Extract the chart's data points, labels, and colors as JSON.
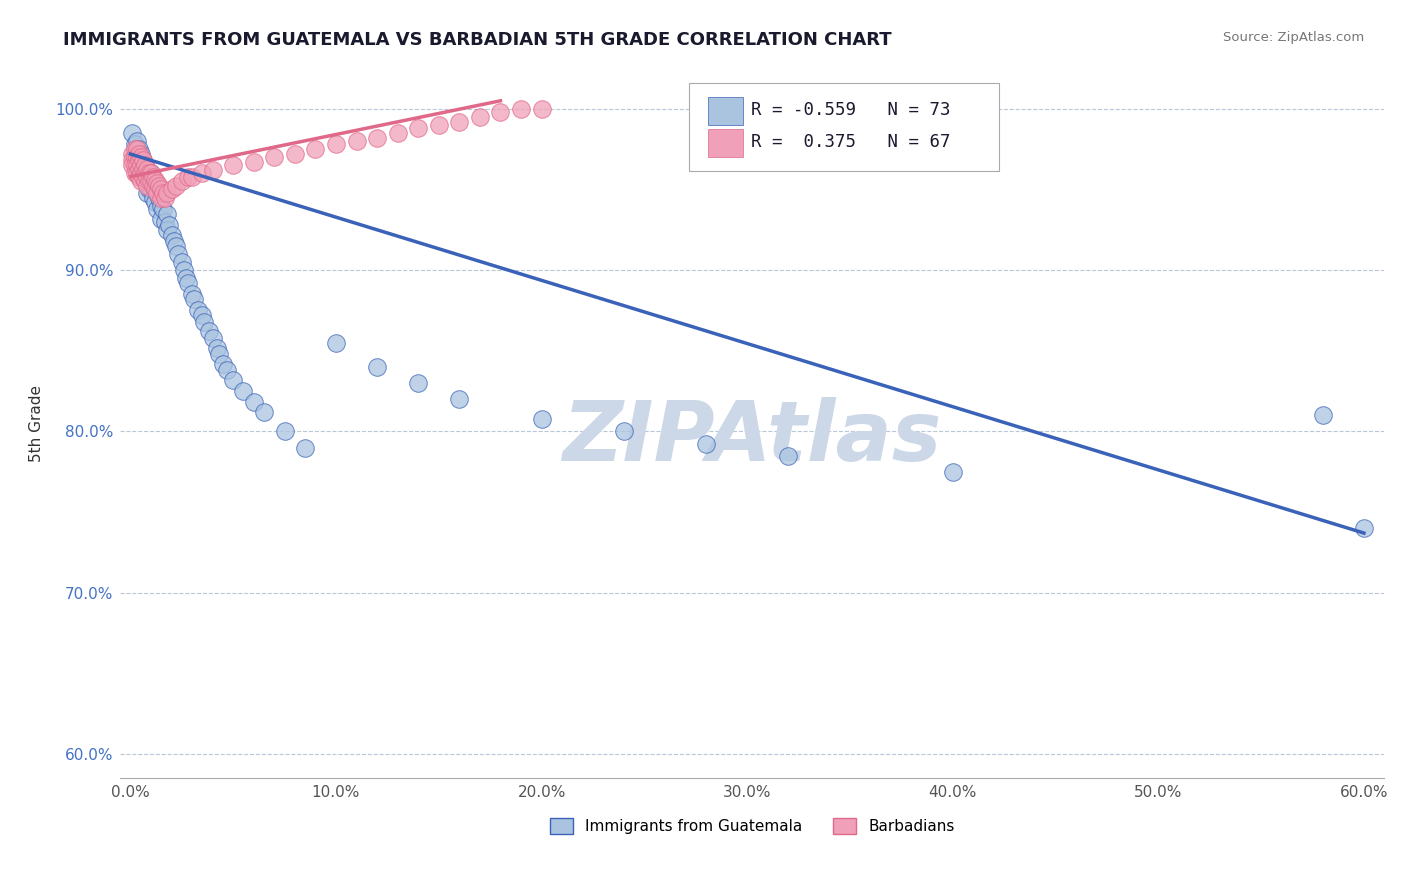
{
  "title": "IMMIGRANTS FROM GUATEMALA VS BARBADIAN 5TH GRADE CORRELATION CHART",
  "source_text": "Source: ZipAtlas.com",
  "ylabel": "5th Grade",
  "legend_label_blue": "Immigrants from Guatemala",
  "legend_label_pink": "Barbadians",
  "R_blue": -0.559,
  "N_blue": 73,
  "R_pink": 0.375,
  "N_pink": 67,
  "xlim": [
    -0.005,
    0.61
  ],
  "ylim": [
    0.585,
    1.025
  ],
  "xtick_labels": [
    "0.0%",
    "10.0%",
    "20.0%",
    "30.0%",
    "40.0%",
    "50.0%",
    "60.0%"
  ],
  "xtick_values": [
    0.0,
    0.1,
    0.2,
    0.3,
    0.4,
    0.5,
    0.6
  ],
  "ytick_labels": [
    "60.0%",
    "70.0%",
    "80.0%",
    "90.0%",
    "100.0%"
  ],
  "ytick_values": [
    0.6,
    0.7,
    0.8,
    0.9,
    1.0
  ],
  "color_blue": "#aac4e0",
  "color_pink": "#f0a0b8",
  "color_blue_line": "#3a62b8",
  "color_pink_line": "#e06888",
  "watermark_color": "#ccd8e8",
  "background_color": "#ffffff",
  "blue_line_x": [
    0.0,
    0.6
  ],
  "blue_line_y": [
    0.972,
    0.737
  ],
  "pink_line_x": [
    0.0,
    0.18
  ],
  "pink_line_y": [
    0.958,
    1.005
  ],
  "blue_scatter_x": [
    0.001,
    0.002,
    0.002,
    0.003,
    0.003,
    0.003,
    0.004,
    0.004,
    0.004,
    0.005,
    0.005,
    0.005,
    0.006,
    0.006,
    0.007,
    0.007,
    0.008,
    0.008,
    0.008,
    0.009,
    0.009,
    0.01,
    0.01,
    0.011,
    0.011,
    0.012,
    0.012,
    0.013,
    0.013,
    0.014,
    0.015,
    0.015,
    0.016,
    0.017,
    0.018,
    0.018,
    0.019,
    0.02,
    0.021,
    0.022,
    0.023,
    0.025,
    0.026,
    0.027,
    0.028,
    0.03,
    0.031,
    0.033,
    0.035,
    0.036,
    0.038,
    0.04,
    0.042,
    0.043,
    0.045,
    0.047,
    0.05,
    0.055,
    0.06,
    0.065,
    0.075,
    0.085,
    0.1,
    0.12,
    0.14,
    0.16,
    0.2,
    0.24,
    0.28,
    0.32,
    0.4,
    0.58,
    0.6
  ],
  "blue_scatter_y": [
    0.985,
    0.978,
    0.972,
    0.98,
    0.97,
    0.965,
    0.975,
    0.968,
    0.96,
    0.972,
    0.965,
    0.958,
    0.968,
    0.96,
    0.965,
    0.955,
    0.962,
    0.955,
    0.948,
    0.958,
    0.95,
    0.96,
    0.95,
    0.955,
    0.945,
    0.952,
    0.942,
    0.948,
    0.938,
    0.945,
    0.94,
    0.932,
    0.938,
    0.93,
    0.935,
    0.925,
    0.928,
    0.922,
    0.918,
    0.915,
    0.91,
    0.905,
    0.9,
    0.895,
    0.892,
    0.885,
    0.882,
    0.875,
    0.872,
    0.868,
    0.862,
    0.858,
    0.852,
    0.848,
    0.842,
    0.838,
    0.832,
    0.825,
    0.818,
    0.812,
    0.8,
    0.79,
    0.855,
    0.84,
    0.83,
    0.82,
    0.808,
    0.8,
    0.792,
    0.785,
    0.775,
    0.81,
    0.74
  ],
  "pink_scatter_x": [
    0.001,
    0.001,
    0.001,
    0.002,
    0.002,
    0.002,
    0.002,
    0.003,
    0.003,
    0.003,
    0.003,
    0.004,
    0.004,
    0.004,
    0.004,
    0.005,
    0.005,
    0.005,
    0.005,
    0.006,
    0.006,
    0.006,
    0.007,
    0.007,
    0.007,
    0.008,
    0.008,
    0.008,
    0.009,
    0.009,
    0.01,
    0.01,
    0.011,
    0.011,
    0.012,
    0.012,
    0.013,
    0.013,
    0.014,
    0.015,
    0.015,
    0.016,
    0.017,
    0.018,
    0.02,
    0.022,
    0.025,
    0.028,
    0.03,
    0.035,
    0.04,
    0.05,
    0.06,
    0.07,
    0.08,
    0.09,
    0.1,
    0.11,
    0.12,
    0.13,
    0.14,
    0.15,
    0.16,
    0.17,
    0.18,
    0.19,
    0.2
  ],
  "pink_scatter_y": [
    0.972,
    0.968,
    0.965,
    0.975,
    0.97,
    0.965,
    0.96,
    0.975,
    0.97,
    0.965,
    0.96,
    0.972,
    0.968,
    0.963,
    0.958,
    0.97,
    0.965,
    0.96,
    0.955,
    0.968,
    0.963,
    0.958,
    0.965,
    0.96,
    0.955,
    0.963,
    0.958,
    0.952,
    0.96,
    0.955,
    0.96,
    0.955,
    0.958,
    0.952,
    0.956,
    0.95,
    0.954,
    0.948,
    0.952,
    0.95,
    0.945,
    0.948,
    0.945,
    0.948,
    0.95,
    0.952,
    0.955,
    0.958,
    0.958,
    0.96,
    0.962,
    0.965,
    0.967,
    0.97,
    0.972,
    0.975,
    0.978,
    0.98,
    0.982,
    0.985,
    0.988,
    0.99,
    0.992,
    0.995,
    0.998,
    1.0,
    1.0
  ]
}
